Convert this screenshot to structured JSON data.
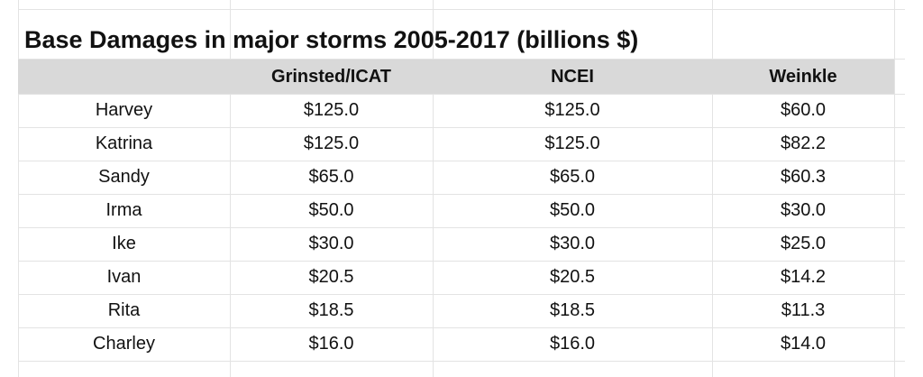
{
  "table": {
    "title": "Base Damages in major storms 2005-2017 (billions $)",
    "headers": [
      "",
      "Grinsted/ICAT",
      "NCEI",
      "Weinkle"
    ],
    "rows": [
      {
        "storm": "Harvey",
        "grinsted": "$125.0",
        "ncei": "$125.0",
        "weinkle": "$60.0"
      },
      {
        "storm": "Katrina",
        "grinsted": "$125.0",
        "ncei": "$125.0",
        "weinkle": "$82.2"
      },
      {
        "storm": "Sandy",
        "grinsted": "$65.0",
        "ncei": "$65.0",
        "weinkle": "$60.3"
      },
      {
        "storm": "Irma",
        "grinsted": "$50.0",
        "ncei": "$50.0",
        "weinkle": "$30.0"
      },
      {
        "storm": "Ike",
        "grinsted": "$30.0",
        "ncei": "$30.0",
        "weinkle": "$25.0"
      },
      {
        "storm": "Ivan",
        "grinsted": "$20.5",
        "ncei": "$20.5",
        "weinkle": "$14.2"
      },
      {
        "storm": "Rita",
        "grinsted": "$18.5",
        "ncei": "$18.5",
        "weinkle": "$11.3"
      },
      {
        "storm": "Charley",
        "grinsted": "$16.0",
        "ncei": "$16.0",
        "weinkle": "$14.0"
      }
    ]
  },
  "colors": {
    "header_background": "#d9d9d9",
    "gridline": "#e3e3e3",
    "text": "#111111"
  }
}
